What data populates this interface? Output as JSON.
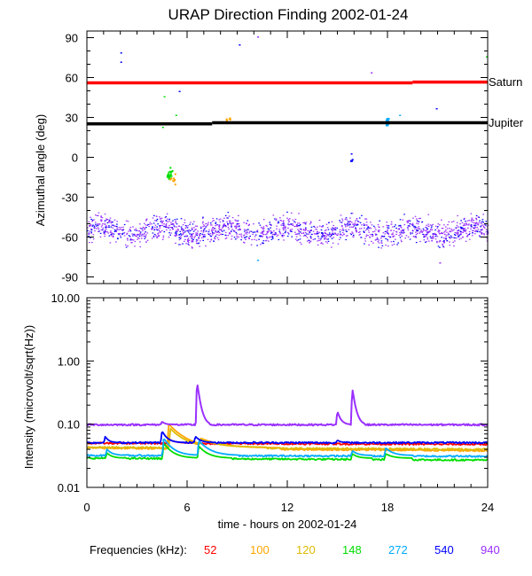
{
  "chart_data": [
    {
      "type": "scatter",
      "title": "URAP Direction Finding  2002-01-24",
      "ylabel": "Azimuthal angle (deg)",
      "xlim": [
        0,
        24
      ],
      "ylim": [
        -95,
        95
      ],
      "yticks": [
        90,
        60,
        30,
        0,
        -30,
        -60,
        -90
      ],
      "tick_labels": [
        "90",
        "60",
        "30",
        "0",
        "-30",
        "-60",
        "-90"
      ],
      "reference_lines": [
        {
          "name": "Saturn",
          "color": "#ff0000",
          "segments": [
            [
              0,
              19.5,
              56
            ],
            [
              19.5,
              24,
              56.6
            ]
          ]
        },
        {
          "name": "Jupiter",
          "color": "#000000",
          "segments": [
            [
              0,
              7.5,
              25.2
            ],
            [
              7.5,
              24,
              26
            ]
          ]
        }
      ],
      "band": {
        "x_range": [
          0,
          24
        ],
        "center": -55,
        "spread": 9,
        "colors": [
          "#9b30ff",
          "#0000ff"
        ]
      },
      "clusters": [
        {
          "color": "#00dd00",
          "x": 4.9,
          "y": -12,
          "dx": 0.25,
          "dy": 5,
          "n": 20
        },
        {
          "color": "#ffa500",
          "x": 5.1,
          "y": -16,
          "dx": 0.35,
          "dy": 5,
          "n": 10
        },
        {
          "color": "#00aaff",
          "x": 17.95,
          "y": 27,
          "dx": 0.15,
          "dy": 4,
          "n": 22
        },
        {
          "color": "#ffa500",
          "x": 8.4,
          "y": 29,
          "dx": 0.3,
          "dy": 1.5,
          "n": 6
        },
        {
          "color": "#0000ff",
          "x": 15.8,
          "y": -1,
          "dx": 0.08,
          "dy": 2.5,
          "n": 4
        }
      ],
      "outliers": [
        {
          "x": 2.0,
          "y": 79,
          "color": "#0000ff"
        },
        {
          "x": 2.0,
          "y": 72,
          "color": "#0000ff"
        },
        {
          "x": 4.6,
          "y": 46,
          "color": "#00dd00"
        },
        {
          "x": 5.5,
          "y": 50,
          "color": "#0000ff"
        },
        {
          "x": 5.3,
          "y": 32,
          "color": "#00dd00"
        },
        {
          "x": 4.5,
          "y": 23,
          "color": "#00dd00"
        },
        {
          "x": 9.1,
          "y": 85,
          "color": "#0000ff"
        },
        {
          "x": 10.2,
          "y": 91,
          "color": "#9b30ff"
        },
        {
          "x": 17.0,
          "y": 64,
          "color": "#9b30ff"
        },
        {
          "x": 18.7,
          "y": 32,
          "color": "#00aaff"
        },
        {
          "x": 20.9,
          "y": 37,
          "color": "#0000ff"
        },
        {
          "x": 23.9,
          "y": 76,
          "color": "#00dd00"
        },
        {
          "x": 10.2,
          "y": -77,
          "color": "#00aaff"
        },
        {
          "x": 21.1,
          "y": -79,
          "color": "#9b30ff"
        },
        {
          "x": 15.8,
          "y": 3,
          "color": "#0000ff"
        }
      ]
    },
    {
      "type": "line",
      "ylabel": "Intensity (microvolt/sqrt(Hz))",
      "xlabel": "time - hours on 2002-01-24",
      "xlim": [
        0,
        24
      ],
      "ylim": [
        0.01,
        10
      ],
      "yscale": "log",
      "xticks": [
        0,
        6,
        12,
        18,
        24
      ],
      "xtick_labels": [
        "0",
        "6",
        "12",
        "18",
        "24"
      ],
      "yticks": [
        10,
        1,
        0.1,
        0.01
      ],
      "ytick_labels": [
        "10.00",
        "1.00",
        "0.10",
        "0.01"
      ],
      "series": [
        {
          "name": "52",
          "color": "#ff0000",
          "baseline": [
            [
              0,
              0.05
            ],
            [
              24,
              0.048
            ]
          ],
          "events": [
            [
              4.9,
              0.058,
              0.4
            ]
          ]
        },
        {
          "name": "100",
          "color": "#ffa500",
          "baseline": [
            [
              0,
              0.042
            ],
            [
              24,
              0.038
            ]
          ],
          "events": [
            [
              4.9,
              0.1,
              0.9
            ],
            [
              6.8,
              0.06,
              1.2
            ]
          ]
        },
        {
          "name": "120",
          "color": "#ddbb00",
          "baseline": [
            [
              0,
              0.043
            ],
            [
              24,
              0.04
            ]
          ],
          "events": [
            [
              5.0,
              0.085,
              0.8
            ],
            [
              6.8,
              0.058,
              1.0
            ]
          ]
        },
        {
          "name": "148",
          "color": "#00dd00",
          "baseline": [
            [
              0,
              0.029
            ],
            [
              24,
              0.027
            ]
          ],
          "events": [
            [
              1.2,
              0.035,
              0.3
            ],
            [
              4.6,
              0.05,
              0.5
            ],
            [
              6.7,
              0.045,
              0.5
            ],
            [
              15.9,
              0.034,
              0.3
            ],
            [
              17.9,
              0.034,
              0.4
            ]
          ]
        },
        {
          "name": "272",
          "color": "#00aaff",
          "baseline": [
            [
              0,
              0.032
            ],
            [
              24,
              0.031
            ]
          ],
          "events": [
            [
              1.2,
              0.04,
              0.3
            ],
            [
              4.6,
              0.06,
              0.5
            ],
            [
              6.7,
              0.055,
              0.6
            ],
            [
              15.9,
              0.038,
              0.3
            ],
            [
              17.9,
              0.042,
              0.4
            ]
          ]
        },
        {
          "name": "540",
          "color": "#0000ff",
          "baseline": [
            [
              0,
              0.051
            ],
            [
              24,
              0.051
            ]
          ],
          "events": [
            [
              1.1,
              0.064,
              0.2
            ],
            [
              4.5,
              0.078,
              0.3
            ],
            [
              6.5,
              0.064,
              0.3
            ],
            [
              15.0,
              0.056,
              0.2
            ]
          ]
        },
        {
          "name": "940",
          "color": "#9b30ff",
          "baseline": [
            [
              0,
              0.098
            ],
            [
              24,
              0.098
            ]
          ],
          "events": [
            [
              4.5,
              0.11,
              0.2
            ],
            [
              6.6,
              0.46,
              0.18
            ],
            [
              15.0,
              0.16,
              0.2
            ],
            [
              15.9,
              0.36,
              0.18
            ]
          ]
        }
      ]
    }
  ],
  "right_labels": {
    "saturn": "Saturn",
    "jupiter": "Jupiter"
  },
  "legend": {
    "label": "Frequencies (kHz):",
    "items": [
      {
        "text": "52",
        "color": "#ff0000"
      },
      {
        "text": "100",
        "color": "#ffa500"
      },
      {
        "text": "120",
        "color": "#ddbb00"
      },
      {
        "text": "148",
        "color": "#00dd00"
      },
      {
        "text": "272",
        "color": "#00aaff"
      },
      {
        "text": "540",
        "color": "#0000ff"
      },
      {
        "text": "940",
        "color": "#9b30ff"
      }
    ]
  }
}
